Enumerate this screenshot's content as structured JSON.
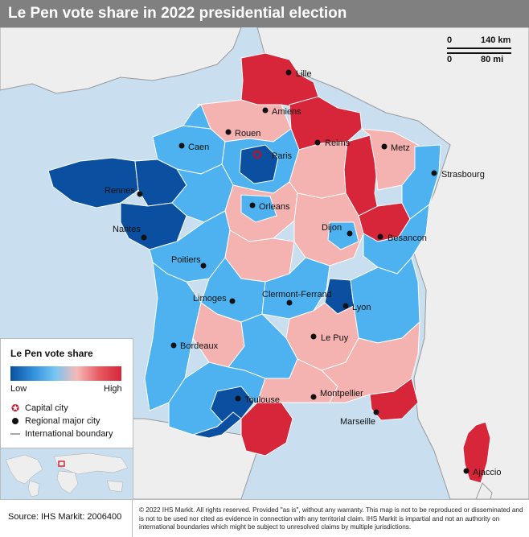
{
  "title": "Le Pen vote share in 2022 presidential election",
  "colors": {
    "high": "#d7263a",
    "mid_high": "#f4b2b0",
    "mid_low": "#4db2ef",
    "low": "#0b4fa0",
    "sea": "#c9dff0",
    "land_outside": "#eeeeee"
  },
  "scale": {
    "km_start": "0",
    "km_end": "140 km",
    "mi_start": "0",
    "mi_end": "80 mi"
  },
  "cities": [
    {
      "name": "Lille",
      "kind": "major"
    },
    {
      "name": "Amiens",
      "kind": "major"
    },
    {
      "name": "Rouen",
      "kind": "major"
    },
    {
      "name": "Caen",
      "kind": "major"
    },
    {
      "name": "Paris",
      "kind": "capital"
    },
    {
      "name": "Reims",
      "kind": "major"
    },
    {
      "name": "Metz",
      "kind": "major"
    },
    {
      "name": "Strasbourg",
      "kind": "major"
    },
    {
      "name": "Rennes",
      "kind": "major"
    },
    {
      "name": "Orleans",
      "kind": "major"
    },
    {
      "name": "Nantes",
      "kind": "major"
    },
    {
      "name": "Dijon",
      "kind": "major"
    },
    {
      "name": "Besancon",
      "kind": "major"
    },
    {
      "name": "Poitiers",
      "kind": "major"
    },
    {
      "name": "Limoges",
      "kind": "major"
    },
    {
      "name": "Clermont-Ferrand",
      "kind": "major"
    },
    {
      "name": "Lyon",
      "kind": "major"
    },
    {
      "name": "Le Puy",
      "kind": "major"
    },
    {
      "name": "Bordeaux",
      "kind": "major"
    },
    {
      "name": "Montpellier",
      "kind": "major"
    },
    {
      "name": "Toulouse",
      "kind": "major"
    },
    {
      "name": "Marseille",
      "kind": "major"
    },
    {
      "name": "Ajaccio",
      "kind": "major"
    }
  ],
  "legend": {
    "title": "Le Pen vote share",
    "low": "Low",
    "high": "High",
    "capital": "Capital city",
    "major": "Regional major city",
    "boundary": "International boundary"
  },
  "footer": {
    "source": "Source: IHS Markit: 2006400",
    "copyright": "© 2022 IHS Markit. All rights reserved. Provided \"as is\", without any warranty. This map is not to be reproduced or disseminated and is not to be used nor cited as evidence in connection with any territorial claim. IHS Markit is impartial and not an authority on international boundaries which might be subject to unresolved claims by multiple jurisdictions."
  }
}
